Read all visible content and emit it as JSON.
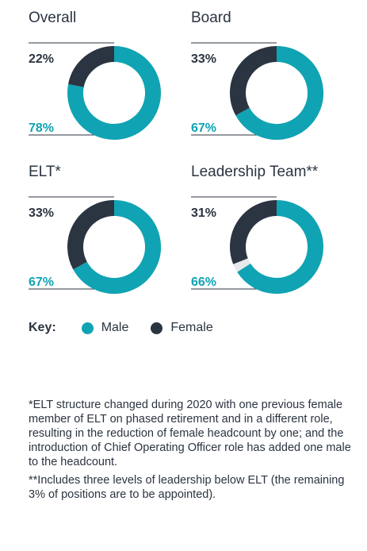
{
  "colors": {
    "male": "#10a3b3",
    "female": "#2b3441",
    "unassigned": "#e6e8ea"
  },
  "chart_data": [
    {
      "type": "pie",
      "title": "Overall",
      "categories": [
        "Female",
        "Male"
      ],
      "values": [
        22,
        78
      ],
      "labels": [
        "22%",
        "78%"
      ]
    },
    {
      "type": "pie",
      "title": "Board",
      "categories": [
        "Female",
        "Male"
      ],
      "values": [
        33,
        67
      ],
      "labels": [
        "33%",
        "67%"
      ]
    },
    {
      "type": "pie",
      "title": "ELT*",
      "categories": [
        "Female",
        "Male"
      ],
      "values": [
        33,
        67
      ],
      "labels": [
        "33%",
        "67%"
      ]
    },
    {
      "type": "pie",
      "title": "Leadership Team**",
      "categories": [
        "Female",
        "Male",
        "To be appointed"
      ],
      "values": [
        31,
        66,
        3
      ],
      "labels": [
        "31%",
        "66%"
      ]
    }
  ],
  "key": {
    "label": "Key:",
    "male": "Male",
    "female": "Female"
  },
  "notes": [
    "*ELT structure changed during 2020 with one previous female member of ELT on phased retirement and in a different role, resulting in the reduction of female headcount by one; and the introduction of Chief Operating Officer role has added one male to the headcount.",
    "**Includes three levels of leadership below ELT (the remaining 3% of positions are to be appointed)."
  ]
}
